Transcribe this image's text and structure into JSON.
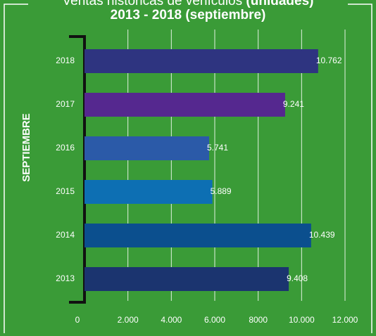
{
  "chart_data": {
    "type": "bar",
    "orientation": "horizontal",
    "title": "Ventas históricas de vehículos",
    "title_bold": "(unidades)",
    "subtitle": "2013 - 2018 (septiembre)",
    "y_label": "SEPTIEMBRE",
    "categories": [
      "2018",
      "2017",
      "2016",
      "2015",
      "2014",
      "2013"
    ],
    "values": [
      10762,
      9241,
      5741,
      5889,
      10439,
      9408
    ],
    "value_labels": [
      "10.762",
      "9.241",
      "5.741",
      "5.889",
      "10.439",
      "9.408"
    ],
    "colors": [
      "#2e3480",
      "#55288f",
      "#2b5aa8",
      "#0d6fb3",
      "#0b4f8e",
      "#1b346f"
    ],
    "xlim": [
      0,
      12000
    ],
    "xticks": [
      0,
      {
        "value": 2000,
        "label": "2.000"
      },
      {
        "value": 4000,
        "label": "4.000"
      },
      {
        "value": 6000,
        "label": "6.000"
      },
      8000,
      {
        "value": 10000,
        "label": "10.000"
      },
      {
        "value": 12000,
        "label": "12.000"
      }
    ],
    "grid": true
  }
}
